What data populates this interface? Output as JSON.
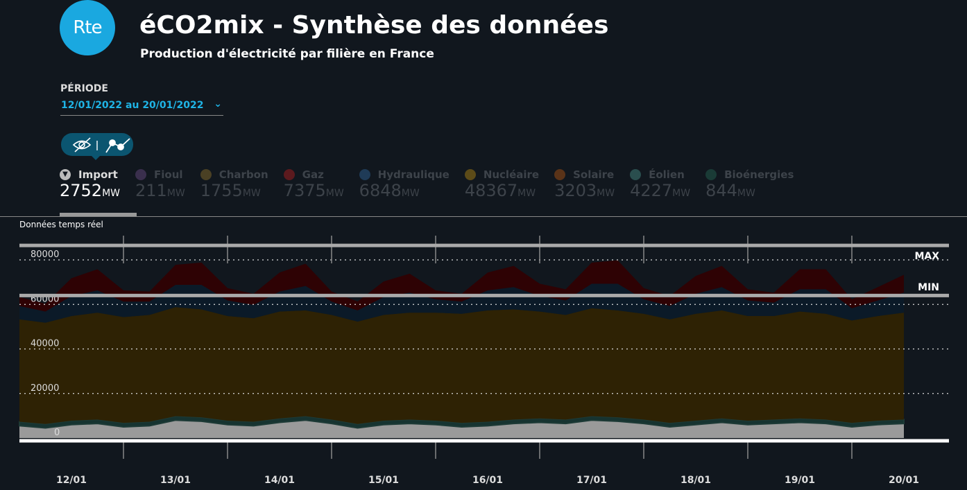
{
  "header": {
    "logo": "Rte",
    "title": "éCO2mix - Synthèse des données",
    "subtitle": "Production d'électricité par filière en France"
  },
  "period": {
    "label": "PÉRIODE",
    "value": "12/01/2022 au 20/01/2022"
  },
  "toggle": {
    "icons": [
      "eye-off-icon",
      "line-chart-icon"
    ]
  },
  "legend": [
    {
      "name": "Import",
      "value": "2752",
      "unit": "MW",
      "color": "#9a9a9a",
      "active": true
    },
    {
      "name": "Fioul",
      "value": "211",
      "unit": "MW",
      "color": "#3a2f4d"
    },
    {
      "name": "Charbon",
      "value": "1755",
      "unit": "MW",
      "color": "#4a4024"
    },
    {
      "name": "Gaz",
      "value": "7375",
      "unit": "MW",
      "color": "#5c1a1e"
    },
    {
      "name": "Hydraulique",
      "value": "6848",
      "unit": "MW",
      "color": "#1f3b57"
    },
    {
      "name": "Nucléaire",
      "value": "48367",
      "unit": "MW",
      "color": "#5c4b18"
    },
    {
      "name": "Solaire",
      "value": "3203",
      "unit": "MW",
      "color": "#5a3318"
    },
    {
      "name": "Éolien",
      "value": "4227",
      "unit": "MW",
      "color": "#2a4e4e"
    },
    {
      "name": "Bioénergies",
      "value": "844",
      "unit": "MW",
      "color": "#1a3b36"
    }
  ],
  "realtime_label": "Données temps réel",
  "chart_data": {
    "type": "area",
    "stacked": true,
    "ylim": [
      0,
      90000
    ],
    "yticks": [
      0,
      20000,
      40000,
      60000,
      80000
    ],
    "max_label": "MAX",
    "min_label": "MIN",
    "max_value": 86500,
    "min_value": 64000,
    "xlabels": [
      "12/01",
      "13/01",
      "14/01",
      "15/01",
      "16/01",
      "17/01",
      "18/01",
      "19/01",
      "20/01"
    ],
    "sample_hours": 6,
    "series": [
      {
        "name": "Import",
        "color": "#9a9a9a",
        "values": [
          5500,
          4500,
          6000,
          6500,
          5000,
          5500,
          8000,
          7500,
          6000,
          5500,
          7000,
          8000,
          6500,
          4500,
          6000,
          6500,
          6000,
          5000,
          5500,
          6500,
          7000,
          6500,
          8000,
          7500,
          6500,
          5000,
          6000,
          7000,
          6000,
          6500,
          7000,
          6500,
          5000,
          6000,
          6500
        ]
      },
      {
        "name": "Éolien / Bioénergies",
        "color": "#163330",
        "values": [
          1800,
          1800,
          1800,
          1800,
          1800,
          1800,
          1800,
          1800,
          1800,
          1800,
          1800,
          1800,
          1800,
          1800,
          1800,
          1800,
          1800,
          1800,
          1800,
          1800,
          1800,
          1800,
          1800,
          1800,
          1800,
          1800,
          1800,
          1800,
          1800,
          1800,
          1800,
          1800,
          1800,
          1800,
          1800
        ]
      },
      {
        "name": "Nucléaire",
        "color": "#2e2204",
        "values": [
          46000,
          45500,
          47000,
          48000,
          47500,
          48000,
          49000,
          48500,
          47000,
          46500,
          48000,
          47500,
          47000,
          46000,
          47500,
          48000,
          48500,
          49000,
          50000,
          49500,
          48000,
          47000,
          48500,
          48000,
          47500,
          46500,
          48000,
          48500,
          47000,
          46500,
          48000,
          47500,
          46000,
          47000,
          48000
        ]
      },
      {
        "name": "Hydraulique",
        "color": "#0b1a28",
        "values": [
          6000,
          5000,
          9000,
          10000,
          7000,
          6000,
          10000,
          11000,
          7000,
          6000,
          9000,
          11000,
          6000,
          5000,
          8000,
          9000,
          6000,
          5500,
          9000,
          10000,
          7000,
          6500,
          11000,
          12000,
          6500,
          6000,
          9000,
          10500,
          7000,
          6000,
          10000,
          11000,
          5500,
          7000,
          9000
        ]
      },
      {
        "name": "Gaz",
        "color": "#2e0204",
        "values": [
          4000,
          3500,
          8000,
          9500,
          5000,
          4500,
          9000,
          10000,
          5500,
          5000,
          8500,
          10000,
          4500,
          4000,
          7000,
          8500,
          4000,
          3500,
          8000,
          9500,
          5500,
          5000,
          9500,
          10500,
          5000,
          4500,
          8000,
          9500,
          5000,
          4500,
          9000,
          9000,
          4000,
          6000,
          8000
        ]
      }
    ]
  }
}
